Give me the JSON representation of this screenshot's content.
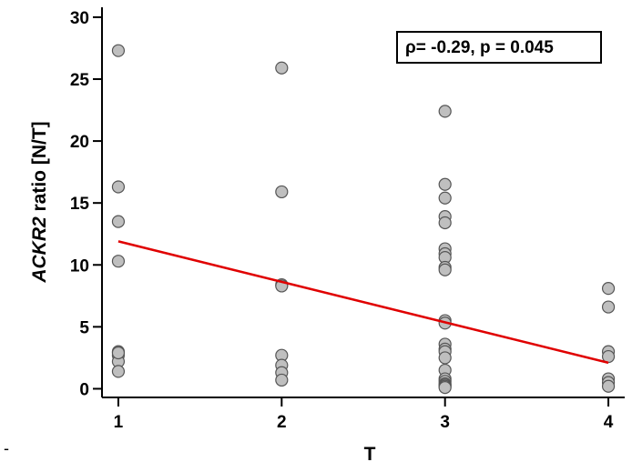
{
  "stray_mark": "-",
  "chart_data": {
    "type": "scatter",
    "title": "",
    "xlabel": "T",
    "ylabel_italic": "ACKR2",
    "ylabel_rest": " ratio [N/T]",
    "xlim": [
      0.9,
      4.1
    ],
    "ylim": [
      -0.7,
      30.8
    ],
    "xticks": [
      1,
      2,
      3,
      4
    ],
    "yticks": [
      0,
      5,
      10,
      15,
      20,
      25,
      30
    ],
    "grid": false,
    "annotation": {
      "text": "ρ= -0.29, p = 0.045",
      "placement": "top-right"
    },
    "colors": {
      "point_fill": "#bfbfbf",
      "point_stroke": "#555555",
      "trend_line": "#e00000",
      "axis": "#000000"
    },
    "series": [
      {
        "x": [
          1,
          1,
          1,
          1,
          1,
          1,
          1,
          1,
          1,
          2,
          2,
          2,
          2,
          2,
          2,
          2,
          2,
          3,
          3,
          3,
          3,
          3,
          3,
          3,
          3,
          3,
          3,
          3,
          3,
          3,
          3,
          3,
          3,
          3,
          3,
          3,
          3,
          3,
          3,
          3,
          4,
          4,
          4,
          4,
          4,
          4,
          4
        ],
        "y": [
          27.3,
          16.3,
          13.5,
          10.3,
          3.0,
          2.7,
          2.2,
          1.4,
          2.9,
          25.9,
          15.9,
          8.4,
          8.3,
          2.7,
          1.9,
          1.3,
          0.7,
          22.4,
          16.5,
          15.4,
          13.9,
          13.4,
          11.3,
          10.9,
          10.6,
          9.8,
          9.6,
          5.5,
          5.3,
          3.6,
          3.2,
          3.0,
          2.5,
          1.5,
          0.8,
          0.6,
          0.4,
          0.3,
          0.2,
          0.1,
          8.1,
          6.6,
          3.0,
          2.6,
          0.8,
          0.5,
          0.2
        ]
      }
    ],
    "trend_line": {
      "x": [
        1,
        4
      ],
      "y": [
        11.9,
        2.1
      ]
    }
  }
}
